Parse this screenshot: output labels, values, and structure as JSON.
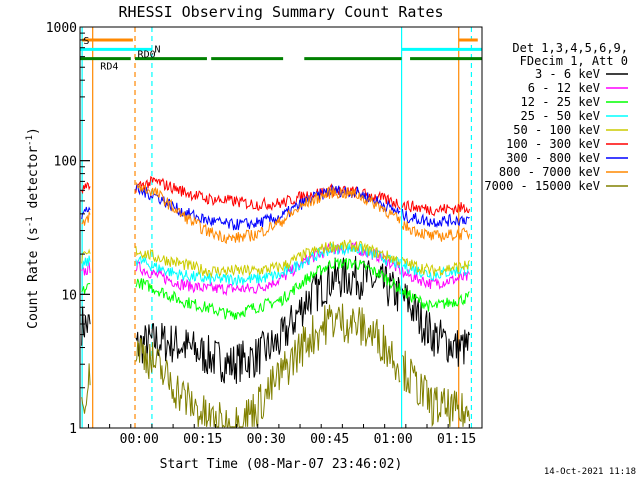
{
  "chart_data": {
    "type": "line",
    "title": "RHESSI Observing Summary Count Rates",
    "xlabel": "Start Time (08-Mar-07 23:46:02)",
    "ylabel_parts": {
      "a": "Count Rate (s",
      "b": "-1",
      "c": " detector",
      "d": "-1",
      "e": ")"
    },
    "yscale": "log",
    "ylim": [
      1,
      1000
    ],
    "xlim_minutes": [
      0,
      95
    ],
    "x_ticks": [
      {
        "label": "00:00",
        "t": 14
      },
      {
        "label": "00:15",
        "t": 29
      },
      {
        "label": "00:30",
        "t": 44
      },
      {
        "label": "00:45",
        "t": 59
      },
      {
        "label": "01:00",
        "t": 74
      },
      {
        "label": "01:15",
        "t": 89
      }
    ],
    "y_ticks": [
      {
        "label": "1",
        "v": 1
      },
      {
        "label": "10",
        "v": 10
      },
      {
        "label": "100",
        "v": 100
      },
      {
        "label": "1000",
        "v": 1000
      }
    ],
    "legend_header": [
      "Det 1,3,4,5,6,9,",
      "FDecim 1, Att 0"
    ],
    "series": [
      {
        "name": "3 - 6 keV",
        "color": "#000000",
        "base": [
          6,
          5.5,
          4,
          4.5,
          4.2,
          3.5,
          3,
          3.4,
          4.5,
          9,
          13,
          13.5,
          12,
          9,
          5,
          4,
          4
        ]
      },
      {
        "name": "6 - 12 keV",
        "color": "#ff00ff",
        "base": [
          14,
          19,
          17,
          14,
          12,
          11,
          11,
          11,
          13,
          18,
          22,
          22,
          19,
          14,
          12,
          13,
          14
        ]
      },
      {
        "name": "12 - 25 keV",
        "color": "#00ff00",
        "base": [
          10,
          15,
          13,
          11,
          9,
          8,
          7,
          8,
          9,
          13,
          17,
          17,
          14,
          10,
          8,
          9,
          10
        ]
      },
      {
        "name": "25 - 50 keV",
        "color": "#00ffff",
        "base": [
          16,
          21,
          19,
          16,
          14,
          13,
          13,
          13,
          14,
          18,
          22,
          22,
          19,
          16,
          14,
          15,
          16
        ]
      },
      {
        "name": "50 - 100 keV",
        "color": "#cccc00",
        "base": [
          18,
          24,
          22,
          19,
          17,
          15,
          15,
          15,
          16,
          20,
          23,
          23,
          20,
          17,
          15,
          16,
          17
        ]
      },
      {
        "name": "100 - 300 keV",
        "color": "#ff0000",
        "base": [
          60,
          67,
          62,
          70,
          60,
          52,
          50,
          47,
          48,
          55,
          60,
          58,
          52,
          46,
          43,
          44,
          46
        ]
      },
      {
        "name": "300 - 800 keV",
        "color": "#0000ff",
        "base": [
          38,
          58,
          62,
          55,
          42,
          36,
          33,
          34,
          38,
          50,
          60,
          58,
          48,
          38,
          35,
          36,
          38
        ]
      },
      {
        "name": "800 - 7000 keV",
        "color": "#ff8800",
        "base": [
          30,
          60,
          67,
          58,
          40,
          30,
          26,
          28,
          35,
          48,
          58,
          56,
          45,
          32,
          27,
          28,
          29
        ]
      },
      {
        "name": "7000 - 15000 keV",
        "color": "#808000",
        "base": [
          1.5,
          4.5,
          4.6,
          3,
          1.8,
          1.2,
          1.0,
          1.4,
          2.5,
          4.5,
          6.5,
          6,
          4.5,
          2.6,
          1.5,
          1.3,
          1.2
        ]
      }
    ],
    "bars": [
      {
        "label": "S",
        "color": "#ff8800",
        "segments": [
          [
            0.5,
            12.5
          ],
          [
            89.5,
            94
          ]
        ],
        "value": 800
      },
      {
        "label": "N",
        "color": "#00ffff",
        "segments": [
          [
            0,
            17
          ],
          [
            76,
            95
          ]
        ],
        "value": 680
      },
      {
        "label": "RD0",
        "color": "#008000",
        "segments": [
          [
            13,
            30
          ],
          [
            31,
            48
          ],
          [
            53,
            76
          ],
          [
            78,
            95
          ]
        ],
        "value": 580
      },
      {
        "label": "RD4",
        "color": "#008000",
        "segments": [
          [
            0,
            12
          ]
        ],
        "value": 580
      }
    ],
    "vlines": [
      {
        "t": 3,
        "color": "#ff8800",
        "dashed": false
      },
      {
        "t": 13,
        "color": "#ff8800",
        "dashed": true
      },
      {
        "t": 17,
        "color": "#00ffff",
        "dashed": true
      },
      {
        "t": 76,
        "color": "#00ffff",
        "dashed": false
      },
      {
        "t": 89.5,
        "color": "#ff8800",
        "dashed": false
      },
      {
        "t": 92.5,
        "color": "#00ffff",
        "dashed": true
      },
      {
        "t": 0.5,
        "color": "#00ffff",
        "dashed": false
      }
    ],
    "footer": "14-Oct-2021 11:18"
  }
}
